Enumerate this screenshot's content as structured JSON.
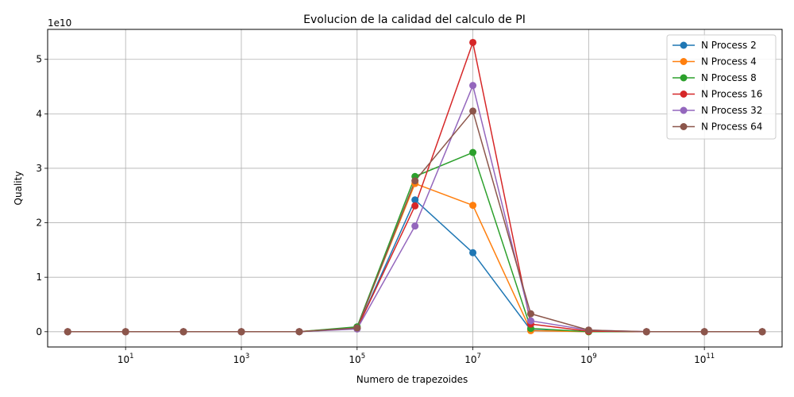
{
  "chart_data": {
    "type": "line",
    "title": "Evolucion de la calidad del calculo de PI",
    "xlabel": "Numero de trapezoides",
    "ylabel": "Quality",
    "y_offset_text": "1e10",
    "x_scale": "log",
    "xlim": [
      0.45,
      2200000000000.0
    ],
    "ylim": [
      -2800000000.0,
      55500000000.0
    ],
    "x_tick_labels": [
      {
        "base": "10",
        "exp": "1",
        "value": 10
      },
      {
        "base": "10",
        "exp": "3",
        "value": 1000
      },
      {
        "base": "10",
        "exp": "5",
        "value": 100000
      },
      {
        "base": "10",
        "exp": "7",
        "value": 10000000
      },
      {
        "base": "10",
        "exp": "9",
        "value": 1000000000
      },
      {
        "base": "10",
        "exp": "11",
        "value": 100000000000
      }
    ],
    "y_tick_labels": [
      {
        "label": "0",
        "value": 0
      },
      {
        "label": "1",
        "value": 10000000000.0
      },
      {
        "label": "2",
        "value": 20000000000.0
      },
      {
        "label": "3",
        "value": 30000000000.0
      },
      {
        "label": "4",
        "value": 40000000000.0
      },
      {
        "label": "5",
        "value": 50000000000.0
      }
    ],
    "grid": true,
    "legend_position": "top-right",
    "x": [
      1,
      10,
      100,
      1000,
      10000,
      100000,
      1000000,
      10000000,
      100000000,
      1000000000,
      10000000000,
      100000000000,
      1000000000000
    ],
    "series": [
      {
        "name": "N Process 2",
        "color": "#1f77b4",
        "values": [
          0,
          0,
          0,
          0,
          10000000.0,
          600000000.0,
          24200000000.0,
          14500000000.0,
          300000000.0,
          0,
          0,
          0,
          0
        ]
      },
      {
        "name": "N Process 4",
        "color": "#ff7f0e",
        "values": [
          0,
          0,
          0,
          0,
          10000000.0,
          800000000.0,
          27200000000.0,
          23200000000.0,
          200000000.0,
          0,
          0,
          0,
          0
        ]
      },
      {
        "name": "N Process 8",
        "color": "#2ca02c",
        "values": [
          0,
          0,
          0,
          0,
          10000000.0,
          900000000.0,
          28500000000.0,
          32900000000.0,
          600000000.0,
          0,
          0,
          0,
          0
        ]
      },
      {
        "name": "N Process 16",
        "color": "#d62728",
        "values": [
          0,
          0,
          0,
          0,
          10000000.0,
          600000000.0,
          23100000000.0,
          53100000000.0,
          1400000000.0,
          100000000.0,
          0,
          0,
          0
        ]
      },
      {
        "name": "N Process 32",
        "color": "#9467bd",
        "values": [
          0,
          0,
          0,
          0,
          10000000.0,
          500000000.0,
          19400000000.0,
          45200000000.0,
          2000000000.0,
          300000000.0,
          0,
          0,
          0
        ]
      },
      {
        "name": "N Process 64",
        "color": "#8c564b",
        "values": [
          0,
          0,
          0,
          0,
          10000000.0,
          700000000.0,
          27700000000.0,
          40500000000.0,
          3300000000.0,
          300000000.0,
          0,
          0,
          0
        ]
      }
    ]
  }
}
